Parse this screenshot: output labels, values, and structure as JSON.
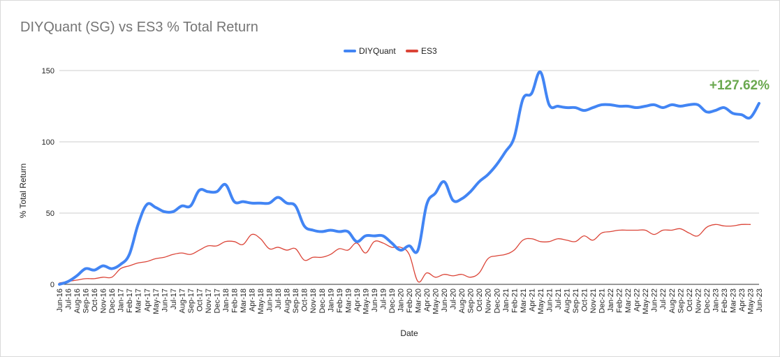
{
  "chart_data": {
    "type": "line",
    "title": "DIYQuant (SG) vs ES3 % Total Return",
    "xlabel": "Date",
    "ylabel": "% Total Return",
    "ylim": [
      0,
      150
    ],
    "yticks": [
      0,
      50,
      100,
      150
    ],
    "grid": true,
    "legend_position": "top",
    "annotation": {
      "text": "+127.62%",
      "color": "#6aa84f"
    },
    "categories": [
      "Jun-16",
      "Jul-16",
      "Aug-16",
      "Sep-16",
      "Oct-16",
      "Nov-16",
      "Dec-16",
      "Jan-17",
      "Feb-17",
      "Mar-17",
      "Apr-17",
      "May-17",
      "Jun-17",
      "Jul-17",
      "Aug-17",
      "Sep-17",
      "Oct-17",
      "Nov-17",
      "Dec-17",
      "Jan-18",
      "Feb-18",
      "Mar-18",
      "Apr-18",
      "May-18",
      "Jun-18",
      "Jul-18",
      "Aug-18",
      "Sep-18",
      "Oct-18",
      "Nov-18",
      "Dec-18",
      "Jan-19",
      "Feb-19",
      "Mar-19",
      "Apr-19",
      "May-19",
      "Jun-19",
      "Jul-19",
      "Dec-19",
      "Jan-20",
      "Feb-20",
      "Mar-20",
      "Apr-20",
      "May-20",
      "Jun-20",
      "Jul-20",
      "Aug-20",
      "Sep-20",
      "Oct-20",
      "Nov-20",
      "Dec-20",
      "Jan-21",
      "Feb-21",
      "Mar-21",
      "Apr-21",
      "May-21",
      "Jun-21",
      "Jul-21",
      "Aug-21",
      "Sep-21",
      "Oct-21",
      "Nov-21",
      "Dec-21",
      "Jan-22",
      "Feb-22",
      "Mar-22",
      "Apr-22",
      "May-22",
      "Jun-22",
      "Jul-22",
      "Aug-22",
      "Sep-22",
      "Oct-22",
      "Nov-22",
      "Dec-22",
      "Jan-23",
      "Feb-23",
      "Mar-23",
      "Apr-23",
      "May-23",
      "Jun-23"
    ],
    "series": [
      {
        "name": "DIYQuant",
        "color": "#4285f4",
        "values": [
          0,
          2,
          6,
          11,
          10,
          13,
          11,
          14,
          21,
          42,
          56,
          54,
          51,
          51,
          55,
          55,
          66,
          65,
          65,
          70,
          58,
          58,
          57,
          57,
          57,
          61,
          57,
          55,
          41,
          38,
          37,
          38,
          37,
          37,
          30,
          34,
          34,
          34,
          29,
          24,
          27,
          24,
          56,
          64,
          72,
          59,
          60,
          65,
          72,
          77,
          84,
          93,
          103,
          130,
          134,
          149,
          126,
          125,
          124,
          124,
          122,
          124,
          126,
          126,
          125,
          125,
          124,
          125,
          126,
          124,
          126,
          125,
          126,
          126,
          121,
          122,
          124,
          120,
          119,
          117,
          127
        ]
      },
      {
        "name": "ES3",
        "color": "#db4437",
        "values": [
          1,
          2,
          3,
          4,
          4,
          5,
          5,
          11,
          13,
          15,
          16,
          18,
          19,
          21,
          22,
          21,
          24,
          27,
          27,
          30,
          30,
          28,
          35,
          32,
          25,
          26,
          24,
          25,
          17,
          19,
          19,
          21,
          25,
          24,
          29,
          22,
          30,
          29,
          26,
          26,
          21,
          2,
          8,
          5,
          7,
          6,
          7,
          5,
          8,
          18,
          20,
          21,
          24,
          31,
          32,
          30,
          30,
          32,
          31,
          30,
          34,
          31,
          36,
          37,
          38,
          38,
          38,
          38,
          35,
          38,
          38,
          39,
          36,
          34,
          40,
          42,
          41,
          41,
          42,
          42,
          null
        ]
      }
    ]
  }
}
